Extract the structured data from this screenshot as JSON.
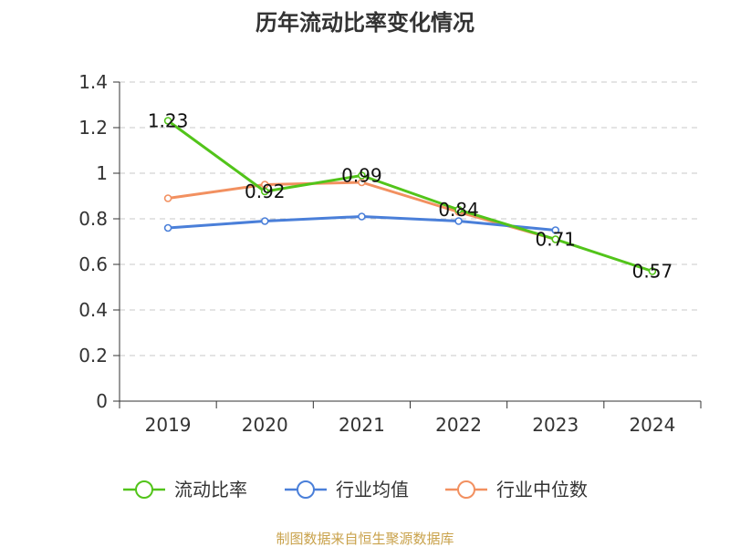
{
  "chart_data": {
    "type": "line",
    "title": "历年流动比率变化情况",
    "categories": [
      "2019",
      "2020",
      "2021",
      "2022",
      "2023",
      "2024"
    ],
    "ylim": [
      0,
      1.4
    ],
    "yticks": [
      "0",
      "0.2",
      "0.4",
      "0.6",
      "0.8",
      "1",
      "1.2",
      "1.4"
    ],
    "grid": true,
    "legend_position": "bottom",
    "series": [
      {
        "name": "流动比率",
        "color": "#52c41a",
        "values": [
          1.23,
          0.92,
          0.99,
          0.84,
          0.71,
          0.57
        ],
        "labels": [
          "1.23",
          "0.92",
          "0.99",
          "0.84",
          "0.71",
          "0.57"
        ]
      },
      {
        "name": "行业均值",
        "color": "#4a7fd9",
        "values": [
          0.76,
          0.79,
          0.81,
          0.79,
          0.75,
          null
        ]
      },
      {
        "name": "行业中位数",
        "color": "#f29060",
        "values": [
          0.89,
          0.95,
          0.96,
          0.83,
          0.71,
          null
        ]
      }
    ],
    "source": "制图数据来自恒生聚源数据库"
  }
}
